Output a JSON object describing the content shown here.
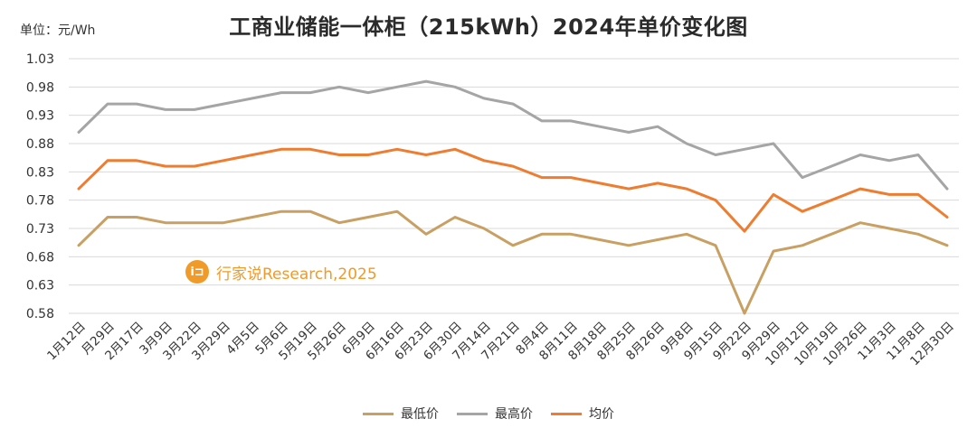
{
  "title": "工商业储能一体柜（215kWh）2024年单价变化图",
  "unit_label": "单位：元/Wh",
  "watermark": {
    "icon_text": "i⊐",
    "text": "行家说Research,2025"
  },
  "chart_data": {
    "type": "line",
    "title": "工商业储能一体柜（215kWh）2024年单价变化图",
    "ylabel": "单位：元/Wh",
    "xlabel": "",
    "ylim": [
      0.58,
      1.03
    ],
    "yticks": [
      "1.03",
      "0.98",
      "0.93",
      "0.88",
      "0.83",
      "0.78",
      "0.73",
      "0.68",
      "0.63",
      "0.58"
    ],
    "grid": true,
    "legend_position": "bottom-center",
    "categories": [
      "1月12日",
      "月29日",
      "2月17日",
      "3月9日",
      "3月22日",
      "3月29日",
      "4月5日",
      "5月6日",
      "5月19日",
      "5月26日",
      "6月9日",
      "6月16日",
      "6月23日",
      "6月30日",
      "7月14日",
      "7月21日",
      "8月4日",
      "8月11日",
      "8月18日",
      "8月25日",
      "8月26日",
      "9月8日",
      "9月15日",
      "9月22日",
      "9月29日",
      "10月12日",
      "10月19日",
      "10月26日",
      "11月3日",
      "11月8日",
      "12月30日"
    ],
    "series": [
      {
        "name": "最低价",
        "color": "#c9a063",
        "values": [
          0.7,
          0.75,
          0.75,
          0.74,
          0.74,
          0.74,
          0.75,
          0.76,
          0.76,
          0.74,
          0.75,
          0.76,
          0.72,
          0.75,
          0.73,
          0.7,
          0.72,
          0.72,
          0.71,
          0.7,
          0.71,
          0.72,
          0.7,
          0.58,
          0.69,
          0.7,
          0.72,
          0.74,
          0.73,
          0.72,
          0.7
        ]
      },
      {
        "name": "最高价",
        "color": "#a5a5a5",
        "values": [
          0.9,
          0.95,
          0.95,
          0.94,
          0.94,
          0.95,
          0.96,
          0.97,
          0.97,
          0.98,
          0.97,
          0.98,
          0.99,
          0.98,
          0.96,
          0.95,
          0.92,
          0.92,
          0.91,
          0.9,
          0.91,
          0.88,
          0.86,
          0.87,
          0.88,
          0.82,
          0.84,
          0.86,
          0.85,
          0.86,
          0.8
        ]
      },
      {
        "name": "均价",
        "color": "#ee7d31",
        "values": [
          0.8,
          0.85,
          0.85,
          0.84,
          0.84,
          0.85,
          0.86,
          0.87,
          0.87,
          0.86,
          0.86,
          0.87,
          0.86,
          0.87,
          0.85,
          0.84,
          0.82,
          0.82,
          0.81,
          0.8,
          0.81,
          0.8,
          0.78,
          0.725,
          0.79,
          0.76,
          0.78,
          0.8,
          0.79,
          0.79,
          0.75
        ]
      }
    ]
  }
}
